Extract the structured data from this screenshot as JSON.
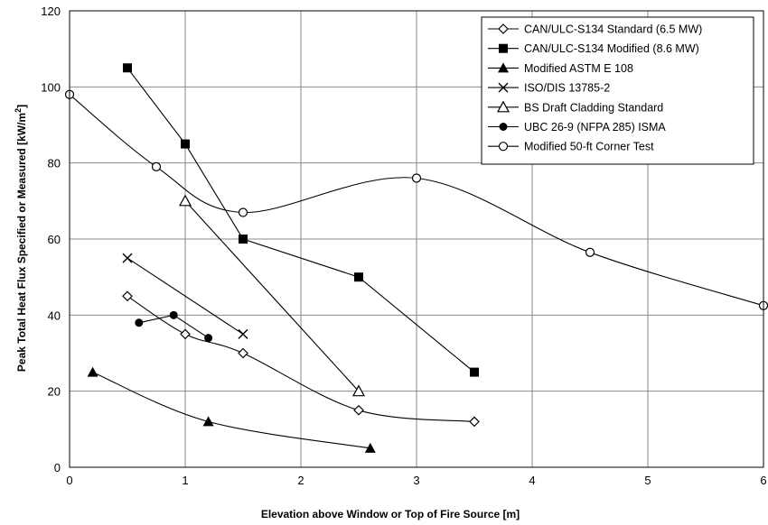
{
  "chart_data": {
    "type": "line",
    "xlabel": "Elevation above Window or Top of Fire Source [m]",
    "ylabel_main": "Peak Total Heat Flux Specified or Measured [kW/m",
    "ylabel_sup": "2",
    "ylabel_end": "]",
    "xlim": [
      0,
      6
    ],
    "ylim": [
      0,
      120
    ],
    "xticks": [
      0,
      1,
      2,
      3,
      4,
      5,
      6
    ],
    "yticks": [
      0,
      20,
      40,
      60,
      80,
      100,
      120
    ],
    "grid": true,
    "legend_position": "top-right",
    "series": [
      {
        "name": "CAN/ULC-S134 Standard (6.5 MW)",
        "marker": "diamond-open",
        "x": [
          0.5,
          1.0,
          1.5,
          2.5,
          3.5
        ],
        "y": [
          45,
          35,
          30,
          15,
          12
        ]
      },
      {
        "name": "CAN/ULC-S134 Modified (8.6 MW)",
        "marker": "square-filled",
        "x": [
          0.5,
          1.0,
          1.5,
          2.5,
          3.5
        ],
        "y": [
          105,
          85,
          60,
          50,
          25
        ]
      },
      {
        "name": "Modified ASTM E 108",
        "marker": "triangle-filled",
        "x": [
          0.2,
          1.2,
          2.6
        ],
        "y": [
          25,
          12,
          5
        ]
      },
      {
        "name": "ISO/DIS 13785-2",
        "marker": "x",
        "x": [
          0.5,
          1.5
        ],
        "y": [
          55,
          35
        ]
      },
      {
        "name": "BS Draft Cladding Standard",
        "marker": "triangle-open",
        "x": [
          1.0,
          2.5
        ],
        "y": [
          70,
          20
        ]
      },
      {
        "name": "UBC 26-9 (NFPA 285) ISMA",
        "marker": "circle-filled",
        "x": [
          0.6,
          0.9,
          1.2
        ],
        "y": [
          38,
          40,
          34
        ]
      },
      {
        "name": "Modified 50-ft Corner Test",
        "marker": "circle-open",
        "x": [
          0,
          0.75,
          1.5,
          3.0,
          4.5,
          6.0
        ],
        "y": [
          98,
          79,
          67,
          76,
          56.5,
          42.5
        ]
      }
    ]
  }
}
